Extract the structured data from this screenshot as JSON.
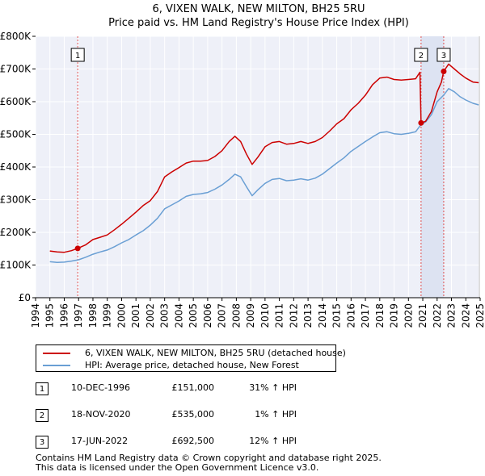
{
  "chart_data": {
    "type": "line",
    "title": "6, VIXEN WALK, NEW MILTON, BH25 5RU",
    "subtitle": "Price paid vs. HM Land Registry's House Price Index (HPI)",
    "xlim": [
      1994,
      2025
    ],
    "ylim": [
      0,
      800000
    ],
    "x_ticks": [
      "1994",
      "1995",
      "1996",
      "1997",
      "1998",
      "1999",
      "2000",
      "2001",
      "2002",
      "2003",
      "2004",
      "2005",
      "2006",
      "2007",
      "2008",
      "2009",
      "2010",
      "2011",
      "2012",
      "2013",
      "2014",
      "2015",
      "2016",
      "2017",
      "2018",
      "2019",
      "2020",
      "2021",
      "2022",
      "2023",
      "2024",
      "2025"
    ],
    "y_ticks": [
      {
        "value": 0,
        "label": "£0"
      },
      {
        "value": 100000,
        "label": "£100K"
      },
      {
        "value": 200000,
        "label": "£200K"
      },
      {
        "value": 300000,
        "label": "£300K"
      },
      {
        "value": 400000,
        "label": "£400K"
      },
      {
        "value": 500000,
        "label": "£500K"
      },
      {
        "value": 600000,
        "label": "£600K"
      },
      {
        "value": 700000,
        "label": "£700K"
      },
      {
        "value": 800000,
        "label": "£800K"
      }
    ],
    "grid": true,
    "colors": {
      "property": "#cc0000",
      "hpi": "#6a9fd4",
      "marker_line": "#e05050",
      "sale_dot": "#cc0000"
    },
    "series": [
      {
        "name": "6, VIXEN WALK, NEW MILTON, BH25 5RU (detached house)",
        "color": "#cc0000",
        "points": [
          [
            1995.0,
            143000
          ],
          [
            1995.5,
            140000
          ],
          [
            1996.0,
            139000
          ],
          [
            1996.5,
            144000
          ],
          [
            1996.94,
            151000
          ],
          [
            1997.5,
            162000
          ],
          [
            1998.0,
            178000
          ],
          [
            1998.5,
            185000
          ],
          [
            1999.0,
            192000
          ],
          [
            1999.5,
            208000
          ],
          [
            2000.0,
            225000
          ],
          [
            2000.5,
            243000
          ],
          [
            2001.0,
            262000
          ],
          [
            2001.5,
            282000
          ],
          [
            2002.0,
            297000
          ],
          [
            2002.5,
            325000
          ],
          [
            2003.0,
            370000
          ],
          [
            2003.5,
            385000
          ],
          [
            2004.0,
            398000
          ],
          [
            2004.5,
            412000
          ],
          [
            2005.0,
            418000
          ],
          [
            2005.5,
            418000
          ],
          [
            2006.0,
            420000
          ],
          [
            2006.5,
            432000
          ],
          [
            2007.0,
            450000
          ],
          [
            2007.5,
            478000
          ],
          [
            2007.9,
            494000
          ],
          [
            2008.3,
            478000
          ],
          [
            2008.7,
            440000
          ],
          [
            2009.1,
            408000
          ],
          [
            2009.5,
            430000
          ],
          [
            2010.0,
            462000
          ],
          [
            2010.5,
            475000
          ],
          [
            2011.0,
            478000
          ],
          [
            2011.5,
            470000
          ],
          [
            2012.0,
            472000
          ],
          [
            2012.5,
            478000
          ],
          [
            2013.0,
            472000
          ],
          [
            2013.5,
            478000
          ],
          [
            2014.0,
            490000
          ],
          [
            2014.5,
            510000
          ],
          [
            2015.0,
            532000
          ],
          [
            2015.5,
            548000
          ],
          [
            2016.0,
            575000
          ],
          [
            2016.5,
            595000
          ],
          [
            2017.0,
            620000
          ],
          [
            2017.5,
            652000
          ],
          [
            2018.0,
            672000
          ],
          [
            2018.5,
            675000
          ],
          [
            2019.0,
            668000
          ],
          [
            2019.5,
            666000
          ],
          [
            2020.0,
            668000
          ],
          [
            2020.5,
            670000
          ],
          [
            2020.8,
            690000
          ],
          [
            2020.88,
            535000
          ],
          [
            2021.2,
            540000
          ],
          [
            2021.6,
            570000
          ],
          [
            2022.0,
            630000
          ],
          [
            2022.3,
            660000
          ],
          [
            2022.46,
            692500
          ],
          [
            2022.8,
            715000
          ],
          [
            2023.2,
            700000
          ],
          [
            2023.6,
            685000
          ],
          [
            2024.0,
            672000
          ],
          [
            2024.5,
            660000
          ],
          [
            2024.9,
            658000
          ]
        ]
      },
      {
        "name": "HPI: Average price, detached house, New Forest",
        "color": "#6a9fd4",
        "points": [
          [
            1995.0,
            110000
          ],
          [
            1995.5,
            108000
          ],
          [
            1996.0,
            109000
          ],
          [
            1996.5,
            112000
          ],
          [
            1997.0,
            116000
          ],
          [
            1997.5,
            124000
          ],
          [
            1998.0,
            133000
          ],
          [
            1998.5,
            140000
          ],
          [
            1999.0,
            146000
          ],
          [
            1999.5,
            156000
          ],
          [
            2000.0,
            168000
          ],
          [
            2000.5,
            178000
          ],
          [
            2001.0,
            192000
          ],
          [
            2001.5,
            205000
          ],
          [
            2002.0,
            222000
          ],
          [
            2002.5,
            243000
          ],
          [
            2003.0,
            272000
          ],
          [
            2003.5,
            284000
          ],
          [
            2004.0,
            296000
          ],
          [
            2004.5,
            310000
          ],
          [
            2005.0,
            316000
          ],
          [
            2005.5,
            318000
          ],
          [
            2006.0,
            322000
          ],
          [
            2006.5,
            332000
          ],
          [
            2007.0,
            345000
          ],
          [
            2007.5,
            362000
          ],
          [
            2007.9,
            378000
          ],
          [
            2008.3,
            370000
          ],
          [
            2008.7,
            340000
          ],
          [
            2009.1,
            312000
          ],
          [
            2009.5,
            330000
          ],
          [
            2010.0,
            350000
          ],
          [
            2010.5,
            362000
          ],
          [
            2011.0,
            365000
          ],
          [
            2011.5,
            358000
          ],
          [
            2012.0,
            360000
          ],
          [
            2012.5,
            364000
          ],
          [
            2013.0,
            360000
          ],
          [
            2013.5,
            366000
          ],
          [
            2014.0,
            378000
          ],
          [
            2014.5,
            395000
          ],
          [
            2015.0,
            412000
          ],
          [
            2015.5,
            428000
          ],
          [
            2016.0,
            448000
          ],
          [
            2016.5,
            463000
          ],
          [
            2017.0,
            478000
          ],
          [
            2017.5,
            492000
          ],
          [
            2018.0,
            505000
          ],
          [
            2018.5,
            508000
          ],
          [
            2019.0,
            502000
          ],
          [
            2019.5,
            500000
          ],
          [
            2020.0,
            503000
          ],
          [
            2020.5,
            508000
          ],
          [
            2020.88,
            530000
          ],
          [
            2021.2,
            538000
          ],
          [
            2021.6,
            560000
          ],
          [
            2022.0,
            600000
          ],
          [
            2022.46,
            620000
          ],
          [
            2022.8,
            640000
          ],
          [
            2023.2,
            630000
          ],
          [
            2023.6,
            615000
          ],
          [
            2024.0,
            605000
          ],
          [
            2024.5,
            595000
          ],
          [
            2024.9,
            590000
          ]
        ]
      }
    ],
    "sales": [
      {
        "marker": "1",
        "x": 1996.94,
        "price_value": 151000
      },
      {
        "marker": "2",
        "x": 2020.88,
        "price_value": 535000
      },
      {
        "marker": "3",
        "x": 2022.46,
        "price_value": 692500
      }
    ]
  },
  "legend": {
    "property_label": "6, VIXEN WALK, NEW MILTON, BH25 5RU (detached house)",
    "hpi_label": "HPI: Average price, detached house, New Forest"
  },
  "sales_table": [
    {
      "num": "1",
      "date": "10-DEC-1996",
      "price": "£151,000",
      "hpi": "31% ↑ HPI"
    },
    {
      "num": "2",
      "date": "18-NOV-2020",
      "price": "£535,000",
      "hpi": "1% ↑ HPI"
    },
    {
      "num": "3",
      "date": "17-JUN-2022",
      "price": "£692,500",
      "hpi": "12% ↑ HPI"
    }
  ],
  "footer": {
    "line1": "Contains HM Land Registry data © Crown copyright and database right 2025.",
    "line2": "This data is licensed under the Open Government Licence v3.0."
  }
}
